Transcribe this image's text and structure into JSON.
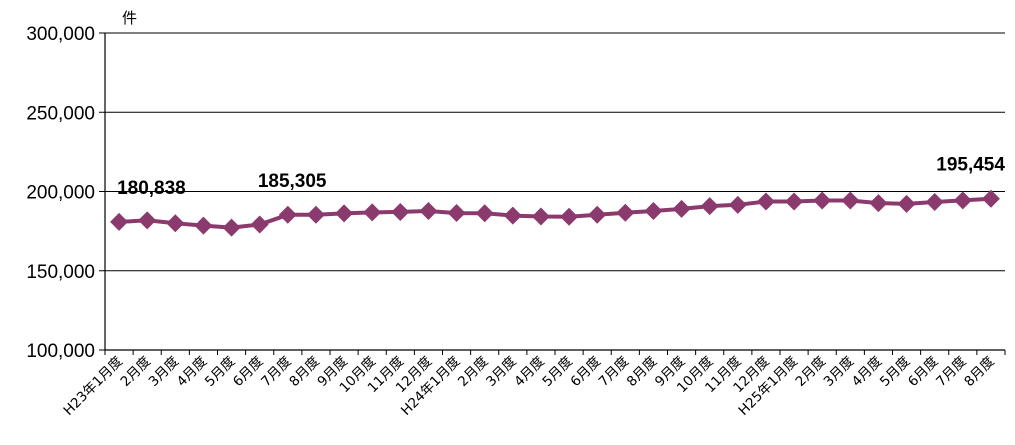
{
  "chart_data": {
    "type": "line",
    "title": "",
    "ylabel": "件",
    "xlabel": "",
    "ylim": [
      100000,
      300000
    ],
    "yticks": [
      "100,000",
      "150,000",
      "200,000",
      "250,000",
      "300,000"
    ],
    "grid": "horizontal",
    "categories": [
      "H23年1月度",
      "2月度",
      "3月度",
      "4月度",
      "5月度",
      "6月度",
      "7月度",
      "8月度",
      "9月度",
      "10月度",
      "11月度",
      "12月度",
      "H24年1月度",
      "2月度",
      "3月度",
      "4月度",
      "5月度",
      "6月度",
      "7月度",
      "8月度",
      "9月度",
      "10月度",
      "11月度",
      "12月度",
      "H25年1月度",
      "2月度",
      "3月度",
      "4月度",
      "5月度",
      "6月度",
      "7月度",
      "8月度"
    ],
    "series": [
      {
        "values": [
          180838,
          181800,
          180000,
          178500,
          177200,
          179200,
          185305,
          185300,
          186200,
          186800,
          187100,
          187700,
          186400,
          186300,
          184800,
          184200,
          184100,
          185300,
          186600,
          187700,
          189000,
          190800,
          191600,
          193700,
          193700,
          194300,
          194300,
          192700,
          192200,
          193400,
          194400,
          195454
        ],
        "color": "#8B3A6E"
      }
    ],
    "data_labels": [
      {
        "index": 0,
        "text": "180,838"
      },
      {
        "index": 6,
        "text": "185,305"
      },
      {
        "index": 31,
        "text": "195,454"
      }
    ]
  }
}
